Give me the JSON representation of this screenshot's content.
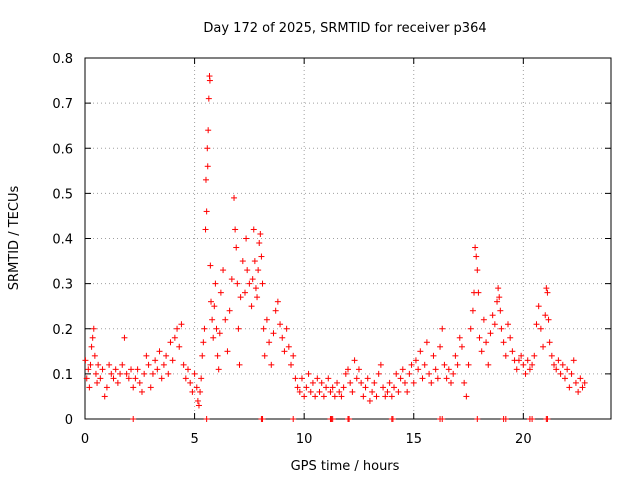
{
  "chart_data": {
    "type": "scatter",
    "title": "Day 172 of 2025, SRMTID for receiver p364",
    "xlabel": "GPS time / hours",
    "ylabel": "SRMTID / TECUs",
    "xlim": [
      0,
      24
    ],
    "ylim": [
      0,
      0.8
    ],
    "xticks": [
      0,
      5,
      10,
      15,
      20
    ],
    "xtick_labels": [
      "0",
      "5",
      "10",
      "15",
      "20"
    ],
    "yticks": [
      0,
      0.1,
      0.2,
      0.3,
      0.4,
      0.5,
      0.6,
      0.7,
      0.8
    ],
    "ytick_labels": [
      "0",
      "0.1",
      "0.2",
      "0.3",
      "0.4",
      "0.5",
      "0.6",
      "0.7",
      "0.8"
    ],
    "grid": true,
    "marker": "+",
    "marker_color": "#ff0000",
    "series": [
      {
        "name": "SRMTID p364",
        "points": [
          [
            0.02,
            0.13
          ],
          [
            0.08,
            0.09
          ],
          [
            0.15,
            0.11
          ],
          [
            0.2,
            0.07
          ],
          [
            0.25,
            0.12
          ],
          [
            0.3,
            0.16
          ],
          [
            0.35,
            0.18
          ],
          [
            0.4,
            0.2
          ],
          [
            0.45,
            0.14
          ],
          [
            0.5,
            0.1
          ],
          [
            0.55,
            0.08
          ],
          [
            0.6,
            0.12
          ],
          [
            0.7,
            0.09
          ],
          [
            0.8,
            0.11
          ],
          [
            0.9,
            0.05
          ],
          [
            1.0,
            0.07
          ],
          [
            1.1,
            0.12
          ],
          [
            1.2,
            0.1
          ],
          [
            1.3,
            0.09
          ],
          [
            1.4,
            0.11
          ],
          [
            1.5,
            0.08
          ],
          [
            1.6,
            0.1
          ],
          [
            1.7,
            0.12
          ],
          [
            1.8,
            0.18
          ],
          [
            1.9,
            0.1
          ],
          [
            2.0,
            0.09
          ],
          [
            2.1,
            0.11
          ],
          [
            2.2,
            0.07
          ],
          [
            2.3,
            0.09
          ],
          [
            2.4,
            0.11
          ],
          [
            2.5,
            0.08
          ],
          [
            2.6,
            0.06
          ],
          [
            2.7,
            0.1
          ],
          [
            2.8,
            0.14
          ],
          [
            2.9,
            0.12
          ],
          [
            3.0,
            0.07
          ],
          [
            3.1,
            0.1
          ],
          [
            3.2,
            0.13
          ],
          [
            3.3,
            0.11
          ],
          [
            3.4,
            0.15
          ],
          [
            3.5,
            0.09
          ],
          [
            3.6,
            0.12
          ],
          [
            3.7,
            0.14
          ],
          [
            3.8,
            0.1
          ],
          [
            3.9,
            0.17
          ],
          [
            4.0,
            0.13
          ],
          [
            4.1,
            0.18
          ],
          [
            4.2,
            0.2
          ],
          [
            4.3,
            0.16
          ],
          [
            4.4,
            0.21
          ],
          [
            4.5,
            0.12
          ],
          [
            4.6,
            0.09
          ],
          [
            4.7,
            0.11
          ],
          [
            4.8,
            0.08
          ],
          [
            4.9,
            0.06
          ],
          [
            5.0,
            0.1
          ],
          [
            5.1,
            0.07
          ],
          [
            5.15,
            0.04
          ],
          [
            5.2,
            0.03
          ],
          [
            5.25,
            0.06
          ],
          [
            5.3,
            0.09
          ],
          [
            5.35,
            0.14
          ],
          [
            5.4,
            0.17
          ],
          [
            5.45,
            0.2
          ],
          [
            5.5,
            0.42
          ],
          [
            5.52,
            0.53
          ],
          [
            5.55,
            0.46
          ],
          [
            5.58,
            0.6
          ],
          [
            5.6,
            0.56
          ],
          [
            5.62,
            0.64
          ],
          [
            5.65,
            0.71
          ],
          [
            5.68,
            0.76
          ],
          [
            5.7,
            0.75
          ],
          [
            5.72,
            0.34
          ],
          [
            5.75,
            0.26
          ],
          [
            5.8,
            0.22
          ],
          [
            5.85,
            0.18
          ],
          [
            5.9,
            0.25
          ],
          [
            5.95,
            0.3
          ],
          [
            6.0,
            0.2
          ],
          [
            6.05,
            0.14
          ],
          [
            6.1,
            0.11
          ],
          [
            6.15,
            0.19
          ],
          [
            6.2,
            0.28
          ],
          [
            6.3,
            0.33
          ],
          [
            6.4,
            0.22
          ],
          [
            6.5,
            0.15
          ],
          [
            6.6,
            0.24
          ],
          [
            6.7,
            0.31
          ],
          [
            6.8,
            0.49
          ],
          [
            6.85,
            0.42
          ],
          [
            6.9,
            0.38
          ],
          [
            6.95,
            0.3
          ],
          [
            7.0,
            0.2
          ],
          [
            7.05,
            0.12
          ],
          [
            7.1,
            0.27
          ],
          [
            7.2,
            0.35
          ],
          [
            7.3,
            0.28
          ],
          [
            7.35,
            0.4
          ],
          [
            7.4,
            0.33
          ],
          [
            7.5,
            0.3
          ],
          [
            7.6,
            0.25
          ],
          [
            7.65,
            0.31
          ],
          [
            7.7,
            0.42
          ],
          [
            7.75,
            0.35
          ],
          [
            7.8,
            0.29
          ],
          [
            7.85,
            0.27
          ],
          [
            7.9,
            0.33
          ],
          [
            7.95,
            0.39
          ],
          [
            8.0,
            0.41
          ],
          [
            8.05,
            0.36
          ],
          [
            8.1,
            0.3
          ],
          [
            8.15,
            0.2
          ],
          [
            8.2,
            0.14
          ],
          [
            8.3,
            0.22
          ],
          [
            8.4,
            0.17
          ],
          [
            8.5,
            0.12
          ],
          [
            8.6,
            0.19
          ],
          [
            8.7,
            0.24
          ],
          [
            8.8,
            0.26
          ],
          [
            8.9,
            0.21
          ],
          [
            9.0,
            0.18
          ],
          [
            9.1,
            0.15
          ],
          [
            9.2,
            0.2
          ],
          [
            9.3,
            0.16
          ],
          [
            9.4,
            0.12
          ],
          [
            9.5,
            0.14
          ],
          [
            9.6,
            0.09
          ],
          [
            9.7,
            0.07
          ],
          [
            9.8,
            0.06
          ],
          [
            9.9,
            0.09
          ],
          [
            10.0,
            0.05
          ],
          [
            10.1,
            0.07
          ],
          [
            10.2,
            0.1
          ],
          [
            10.3,
            0.06
          ],
          [
            10.4,
            0.08
          ],
          [
            10.5,
            0.05
          ],
          [
            10.6,
            0.09
          ],
          [
            10.7,
            0.06
          ],
          [
            10.8,
            0.08
          ],
          [
            10.9,
            0.05
          ],
          [
            11.0,
            0.07
          ],
          [
            11.1,
            0.09
          ],
          [
            11.2,
            0.06
          ],
          [
            11.3,
            0.07
          ],
          [
            11.4,
            0.05
          ],
          [
            11.5,
            0.08
          ],
          [
            11.6,
            0.06
          ],
          [
            11.7,
            0.05
          ],
          [
            11.8,
            0.07
          ],
          [
            11.9,
            0.1
          ],
          [
            12.0,
            0.11
          ],
          [
            12.1,
            0.08
          ],
          [
            12.2,
            0.06
          ],
          [
            12.3,
            0.13
          ],
          [
            12.4,
            0.09
          ],
          [
            12.5,
            0.11
          ],
          [
            12.6,
            0.08
          ],
          [
            12.7,
            0.05
          ],
          [
            12.8,
            0.07
          ],
          [
            12.9,
            0.09
          ],
          [
            13.0,
            0.04
          ],
          [
            13.1,
            0.06
          ],
          [
            13.2,
            0.08
          ],
          [
            13.3,
            0.05
          ],
          [
            13.4,
            0.1
          ],
          [
            13.5,
            0.12
          ],
          [
            13.6,
            0.07
          ],
          [
            13.7,
            0.05
          ],
          [
            13.8,
            0.06
          ],
          [
            13.9,
            0.08
          ],
          [
            14.0,
            0.05
          ],
          [
            14.1,
            0.07
          ],
          [
            14.2,
            0.1
          ],
          [
            14.3,
            0.06
          ],
          [
            14.4,
            0.09
          ],
          [
            14.5,
            0.11
          ],
          [
            14.6,
            0.08
          ],
          [
            14.7,
            0.06
          ],
          [
            14.8,
            0.1
          ],
          [
            14.9,
            0.12
          ],
          [
            15.0,
            0.08
          ],
          [
            15.1,
            0.13
          ],
          [
            15.2,
            0.11
          ],
          [
            15.3,
            0.15
          ],
          [
            15.4,
            0.09
          ],
          [
            15.5,
            0.12
          ],
          [
            15.6,
            0.17
          ],
          [
            15.7,
            0.1
          ],
          [
            15.8,
            0.08
          ],
          [
            15.9,
            0.14
          ],
          [
            16.0,
            0.11
          ],
          [
            16.1,
            0.09
          ],
          [
            16.2,
            0.16
          ],
          [
            16.3,
            0.2
          ],
          [
            16.4,
            0.12
          ],
          [
            16.5,
            0.09
          ],
          [
            16.6,
            0.11
          ],
          [
            16.7,
            0.08
          ],
          [
            16.8,
            0.1
          ],
          [
            16.9,
            0.14
          ],
          [
            17.0,
            0.12
          ],
          [
            17.1,
            0.18
          ],
          [
            17.2,
            0.16
          ],
          [
            17.3,
            0.08
          ],
          [
            17.4,
            0.05
          ],
          [
            17.5,
            0.12
          ],
          [
            17.6,
            0.2
          ],
          [
            17.7,
            0.24
          ],
          [
            17.75,
            0.28
          ],
          [
            17.8,
            0.38
          ],
          [
            17.85,
            0.36
          ],
          [
            17.9,
            0.33
          ],
          [
            17.95,
            0.28
          ],
          [
            18.0,
            0.18
          ],
          [
            18.1,
            0.15
          ],
          [
            18.2,
            0.22
          ],
          [
            18.3,
            0.17
          ],
          [
            18.4,
            0.12
          ],
          [
            18.5,
            0.19
          ],
          [
            18.6,
            0.23
          ],
          [
            18.7,
            0.21
          ],
          [
            18.8,
            0.26
          ],
          [
            18.85,
            0.29
          ],
          [
            18.9,
            0.27
          ],
          [
            18.95,
            0.24
          ],
          [
            19.0,
            0.2
          ],
          [
            19.1,
            0.17
          ],
          [
            19.2,
            0.14
          ],
          [
            19.3,
            0.21
          ],
          [
            19.4,
            0.18
          ],
          [
            19.5,
            0.15
          ],
          [
            19.6,
            0.13
          ],
          [
            19.7,
            0.11
          ],
          [
            19.8,
            0.13
          ],
          [
            19.9,
            0.14
          ],
          [
            20.0,
            0.12
          ],
          [
            20.1,
            0.1
          ],
          [
            20.2,
            0.13
          ],
          [
            20.3,
            0.11
          ],
          [
            20.4,
            0.12
          ],
          [
            20.5,
            0.14
          ],
          [
            20.6,
            0.21
          ],
          [
            20.7,
            0.25
          ],
          [
            20.8,
            0.2
          ],
          [
            20.9,
            0.16
          ],
          [
            21.0,
            0.23
          ],
          [
            21.05,
            0.29
          ],
          [
            21.1,
            0.28
          ],
          [
            21.15,
            0.22
          ],
          [
            21.2,
            0.17
          ],
          [
            21.3,
            0.14
          ],
          [
            21.4,
            0.12
          ],
          [
            21.5,
            0.11
          ],
          [
            21.6,
            0.13
          ],
          [
            21.7,
            0.1
          ],
          [
            21.8,
            0.12
          ],
          [
            21.9,
            0.09
          ],
          [
            22.0,
            0.11
          ],
          [
            22.1,
            0.07
          ],
          [
            22.2,
            0.1
          ],
          [
            22.3,
            0.13
          ],
          [
            22.4,
            0.08
          ],
          [
            22.5,
            0.06
          ],
          [
            22.6,
            0.09
          ],
          [
            22.7,
            0.07
          ],
          [
            22.8,
            0.08
          ]
        ]
      }
    ],
    "zero_points_x": [
      2.2,
      5.55,
      8.05,
      8.1,
      9.5,
      11.2,
      11.25,
      11.3,
      12.0,
      12.05,
      14.0,
      14.05,
      16.2,
      16.3,
      17.9,
      19.1,
      19.2,
      20.3,
      20.4,
      21.05,
      21.1
    ]
  }
}
